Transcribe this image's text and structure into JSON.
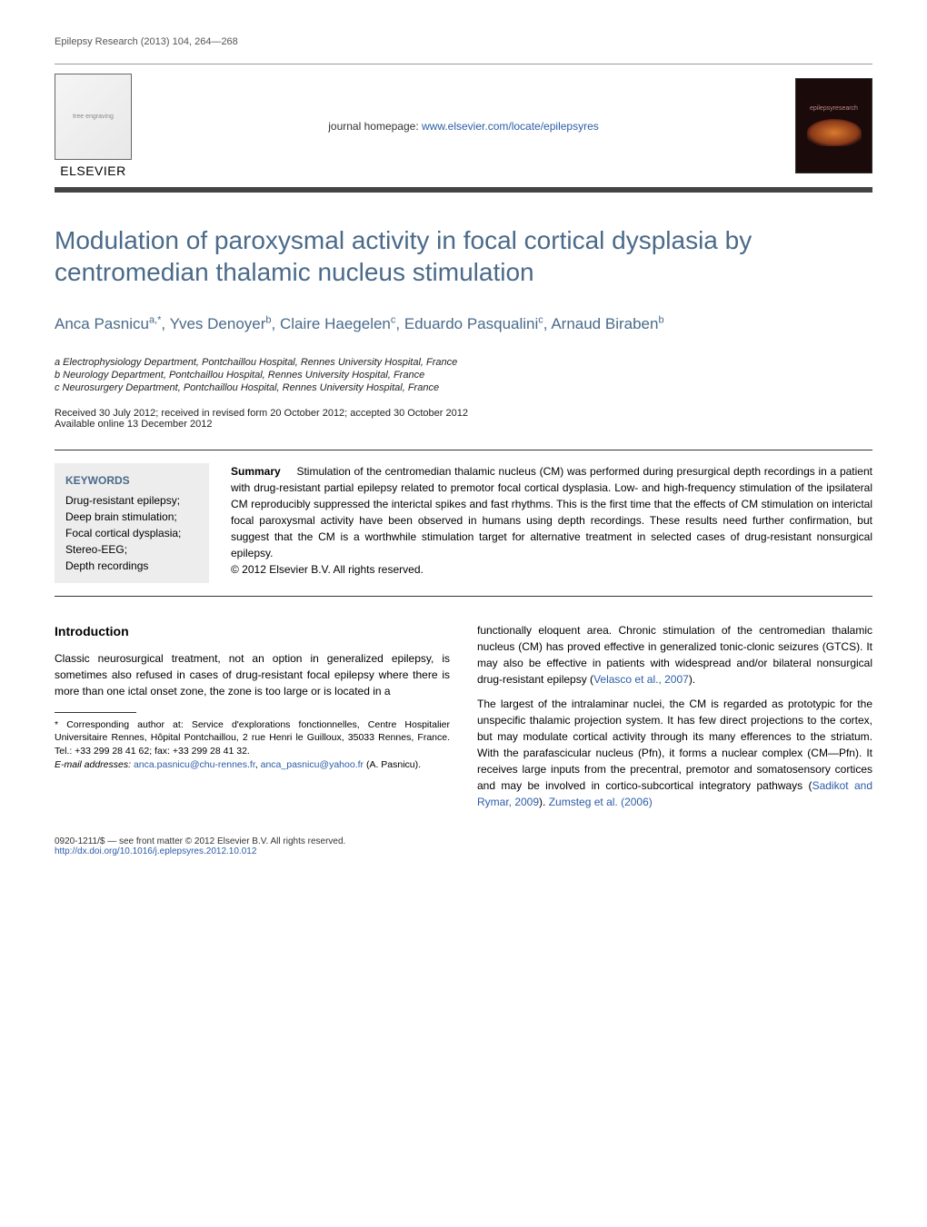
{
  "journal_header": "Epilepsy Research (2013) 104, 264—268",
  "elsevier_label": "ELSEVIER",
  "homepage_prefix": "journal homepage: ",
  "homepage_url": "www.elsevier.com/locate/epilepsyres",
  "cover_text": "epilepsyresearch",
  "title": "Modulation of paroxysmal activity in focal cortical dysplasia by centromedian thalamic nucleus stimulation",
  "authors": {
    "a1": {
      "name": "Anca Pasnicu",
      "sup": "a,*"
    },
    "a2": {
      "name": "Yves Denoyer",
      "sup": "b"
    },
    "a3": {
      "name": "Claire Haegelen",
      "sup": "c"
    },
    "a4": {
      "name": "Eduardo Pasqualini",
      "sup": "c"
    },
    "a5": {
      "name": "Arnaud Biraben",
      "sup": "b"
    }
  },
  "affiliations": {
    "a": "a Electrophysiology Department, Pontchaillou Hospital, Rennes University Hospital, France",
    "b": "b Neurology Department, Pontchaillou Hospital, Rennes University Hospital, France",
    "c": "c Neurosurgery Department, Pontchaillou Hospital, Rennes University Hospital, France"
  },
  "dates_line1": "Received 30 July 2012; received in revised form 20 October 2012; accepted 30 October 2012",
  "dates_line2": "Available online 13 December 2012",
  "keywords_head": "KEYWORDS",
  "keywords": "Drug-resistant epilepsy;\nDeep brain stimulation;\nFocal cortical dysplasia;\nStereo-EEG;\nDepth recordings",
  "summary_head": "Summary",
  "summary_text": "Stimulation of the centromedian thalamic nucleus (CM) was performed during presurgical depth recordings in a patient with drug-resistant partial epilepsy related to premotor focal cortical dysplasia. Low- and high-frequency stimulation of the ipsilateral CM reproducibly suppressed the interictal spikes and fast rhythms. This is the first time that the effects of CM stimulation on interictal focal paroxysmal activity have been observed in humans using depth recordings. These results need further confirmation, but suggest that the CM is a worthwhile stimulation target for alternative treatment in selected cases of drug-resistant nonsurgical epilepsy.",
  "summary_copyright": "© 2012 Elsevier B.V. All rights reserved.",
  "intro_head": "Introduction",
  "intro_p1": "Classic neurosurgical treatment, not an option in generalized epilepsy, is sometimes also refused in cases of drug-resistant focal epilepsy where there is more than one ictal onset zone, the zone is too large or is located in a",
  "col2_p1_a": "functionally eloquent area. Chronic stimulation of the centromedian thalamic nucleus (CM) has proved effective in generalized tonic-clonic seizures (GTCS). It may also be effective in patients with widespread and/or bilateral nonsurgical drug-resistant epilepsy (",
  "col2_p1_ref": "Velasco et al., 2007",
  "col2_p1_b": ").",
  "col2_p2_a": "The largest of the intralaminar nuclei, the CM is regarded as prototypic for the unspecific thalamic projection system. It has few direct projections to the cortex, but may modulate cortical activity through its many efferences to the striatum. With the parafascicular nucleus (Pfn), it forms a nuclear complex (CM—Pfn). It receives large inputs from the precentral, premotor and somatosensory cortices and may be involved in cortico-subcortical integratory pathways (",
  "col2_p2_ref1": "Sadikot and Rymar, 2009",
  "col2_p2_mid": "). ",
  "col2_p2_ref2": "Zumsteg et al. (2006)",
  "corr_text": "* Corresponding author at: Service d'explorations fonctionnelles, Centre Hospitalier Universitaire Rennes, Hôpital Pontchaillou, 2 rue Henri le Guilloux, 35033 Rennes, France. Tel.: +33 299 28 41 62; fax: +33 299 28 41 32.",
  "email_label": "E-mail addresses: ",
  "email1": "anca.pasnicu@chu-rennes.fr",
  "email_sep": ", ",
  "email2": "anca_pasnicu@yahoo.fr",
  "email_suffix": " (A. Pasnicu).",
  "footer_copy": "0920-1211/$ — see front matter © 2012 Elsevier B.V. All rights reserved.",
  "footer_doi": "http://dx.doi.org/10.1016/j.eplepsyres.2012.10.012",
  "colors": {
    "heading_blue": "#4a6a8a",
    "link_blue": "#2b5ca8",
    "keyword_bg": "#ededed",
    "rule_dark": "#444444"
  }
}
